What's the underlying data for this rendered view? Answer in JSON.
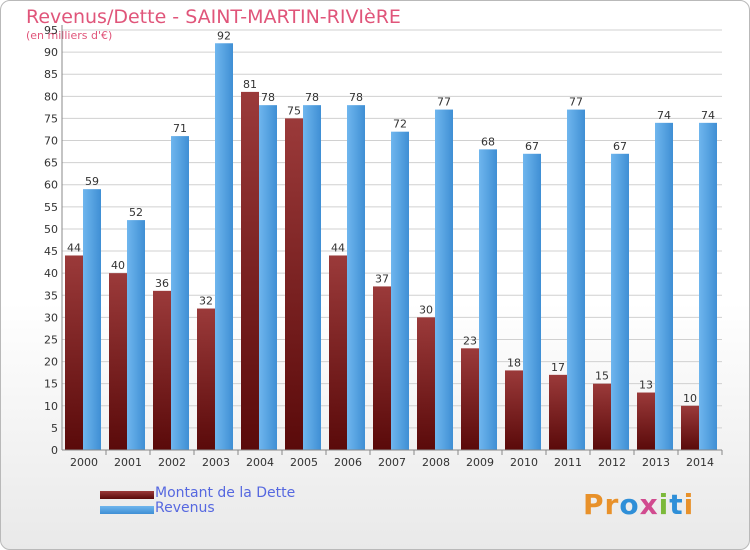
{
  "title": "Revenus/Dette - SAINT-MARTIN-RIVIèRE",
  "subtitle": "(en milliers d'€)",
  "logo": {
    "text": "Proxiti",
    "colors": [
      "#e8912a",
      "#e8912a",
      "#2f8fd8",
      "#d14b8f",
      "#7cb93a",
      "#2f8fd8",
      "#e8912a"
    ]
  },
  "legend": [
    {
      "label": "Montant de la Dette",
      "color": "#6b1515"
    },
    {
      "label": "Revenus",
      "color": "#3d8fd8"
    }
  ],
  "colors": {
    "dette_top": "#9b3a3a",
    "dette_bottom": "#5a0a0a",
    "revenus_light": "#6fb6ee",
    "revenus_dark": "#3f8fd4",
    "grid": "#d0d0d0",
    "axis_text": "#333333"
  },
  "chart_data": {
    "type": "bar",
    "title": "Revenus/Dette - SAINT-MARTIN-RIVIèRE",
    "subtitle": "(en milliers d'€)",
    "categories": [
      "2000",
      "2001",
      "2002",
      "2003",
      "2004",
      "2005",
      "2006",
      "2007",
      "2008",
      "2009",
      "2010",
      "2011",
      "2012",
      "2013",
      "2014"
    ],
    "series": [
      {
        "name": "Montant de la Dette",
        "values": [
          44,
          40,
          36,
          32,
          81,
          75,
          44,
          37,
          30,
          23,
          18,
          17,
          15,
          13,
          10
        ]
      },
      {
        "name": "Revenus",
        "values": [
          59,
          52,
          71,
          92,
          78,
          78,
          78,
          72,
          77,
          68,
          67,
          77,
          67,
          74,
          74
        ]
      }
    ],
    "ylim": [
      0,
      95
    ],
    "yticks": [
      0,
      5,
      10,
      15,
      20,
      25,
      30,
      35,
      40,
      45,
      50,
      55,
      60,
      65,
      70,
      75,
      80,
      85,
      90,
      95
    ],
    "grid": true,
    "legend_position": "bottom-left"
  }
}
